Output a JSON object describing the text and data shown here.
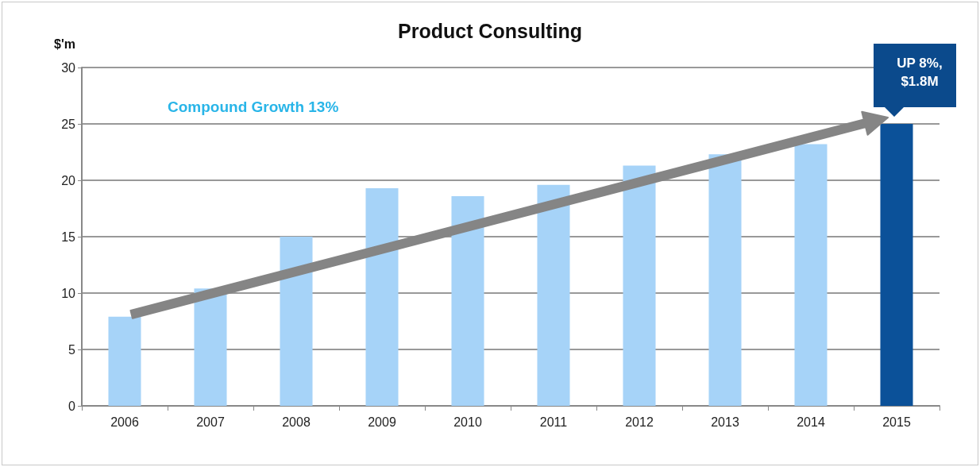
{
  "chart_data": {
    "type": "bar",
    "title": "Product Consulting",
    "ylabel": "$'m",
    "categories": [
      "2006",
      "2007",
      "2008",
      "2009",
      "2010",
      "2011",
      "2012",
      "2013",
      "2014",
      "2015"
    ],
    "values": [
      7.9,
      10.4,
      15.0,
      19.3,
      18.6,
      19.6,
      21.3,
      22.3,
      23.2,
      25.0
    ],
    "colors": [
      "#a6d3f8",
      "#a6d3f8",
      "#a6d3f8",
      "#a6d3f8",
      "#a6d3f8",
      "#a6d3f8",
      "#a6d3f8",
      "#a6d3f8",
      "#a6d3f8",
      "#0b5199"
    ],
    "ylim": [
      0,
      30
    ],
    "yticks": [
      0,
      5,
      10,
      15,
      20,
      25,
      30
    ],
    "grid": "y",
    "annotations": [
      "Compound Growth 13%",
      {
        "text": "UP 8%,\n$1.8M",
        "x": "2015",
        "y": 25
      }
    ]
  }
}
